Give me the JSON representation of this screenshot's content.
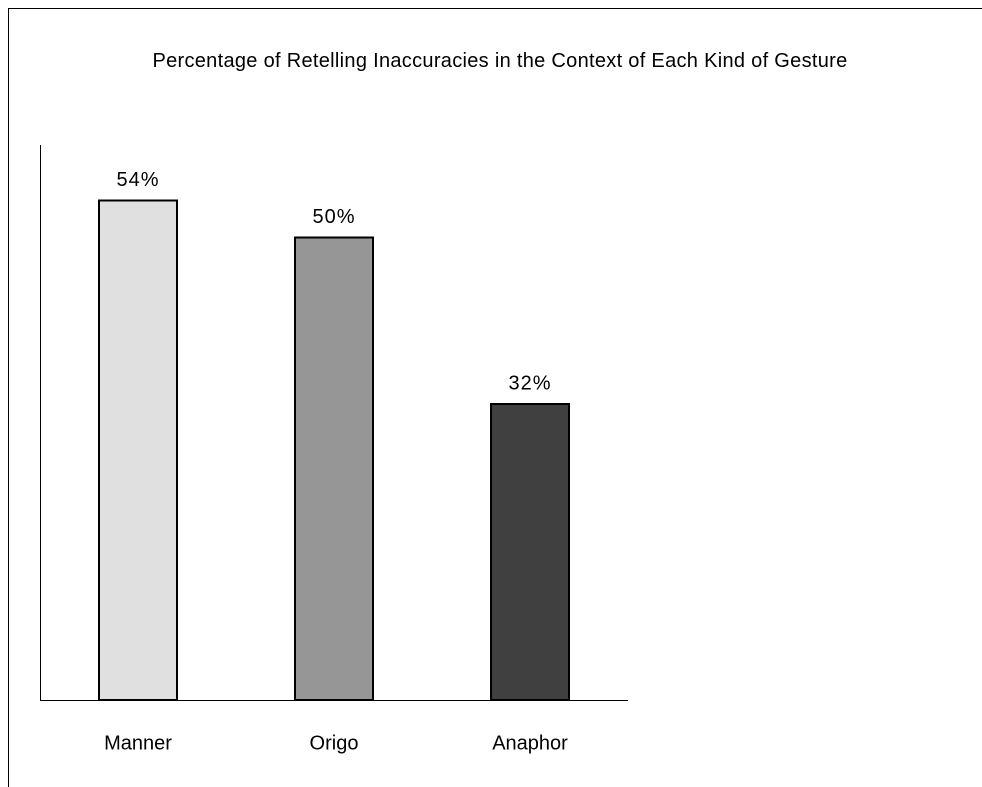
{
  "chart_data": {
    "type": "bar",
    "title": "Percentage of Retelling Inaccuracies in the Context of Each Kind of Gesture",
    "categories": [
      "Manner",
      "Origo",
      "Anaphor"
    ],
    "values": [
      54,
      50,
      32
    ],
    "value_labels": [
      "54%",
      "50%",
      "32%"
    ],
    "colors": [
      "#e0e0e0",
      "#969696",
      "#404040"
    ],
    "ylim": [
      0,
      60
    ]
  }
}
